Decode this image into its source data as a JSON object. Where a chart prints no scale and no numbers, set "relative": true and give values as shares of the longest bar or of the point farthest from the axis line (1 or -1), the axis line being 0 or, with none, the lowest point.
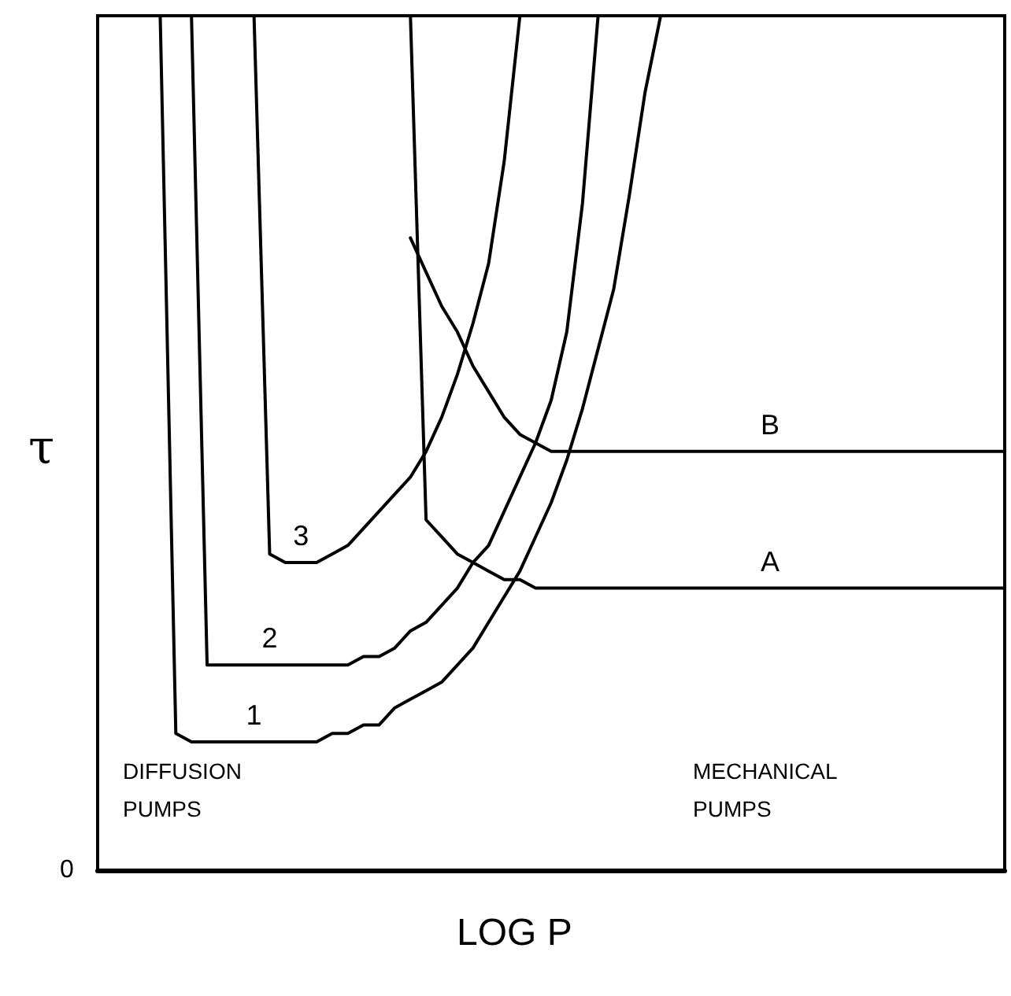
{
  "chart_data": {
    "type": "line",
    "relative": true,
    "xlabel": "LOG P",
    "ylabel": "τ",
    "grid": false,
    "legend": false,
    "marker": "none",
    "line_style": "solid",
    "categories": [
      null,
      null,
      null,
      null,
      null,
      null,
      null,
      null,
      null,
      null,
      null,
      null,
      null,
      null,
      null,
      null,
      null,
      null,
      null,
      null,
      null,
      null,
      null,
      null,
      null,
      null,
      null,
      null,
      null,
      null,
      null,
      null,
      null,
      null,
      null,
      null,
      null,
      null,
      null,
      null,
      null,
      null,
      null,
      null,
      null,
      null,
      null,
      null,
      null,
      null,
      null,
      null,
      null,
      null,
      null,
      null,
      null,
      null,
      null
    ],
    "annotations": [
      "0",
      "DIFFUSION PUMPS",
      "MECHANICAL PUMPS"
    ],
    "series": [
      {
        "name": "1",
        "color": "#000000",
        "values": [
          null,
          null,
          null,
          null,
          1.0,
          0.16,
          0.15,
          0.15,
          0.15,
          0.15,
          0.15,
          0.15,
          0.15,
          0.15,
          0.15,
          0.16,
          0.16,
          0.17,
          0.17,
          0.19,
          0.2,
          0.21,
          0.22,
          0.24,
          0.26,
          0.29,
          0.32,
          0.35,
          0.39,
          0.43,
          0.48,
          0.54,
          0.61,
          0.68,
          0.79,
          0.91,
          1.0,
          null,
          null,
          null,
          null,
          null,
          null,
          null,
          null,
          null,
          null,
          null,
          null,
          null,
          null,
          null,
          null,
          null,
          null,
          null,
          null,
          null,
          null
        ]
      },
      {
        "name": "2",
        "color": "#000000",
        "values": [
          null,
          null,
          null,
          null,
          null,
          null,
          1.0,
          0.24,
          0.24,
          0.24,
          0.24,
          0.24,
          0.24,
          0.24,
          0.24,
          0.24,
          0.24,
          0.25,
          0.25,
          0.26,
          0.28,
          0.29,
          0.31,
          0.33,
          0.36,
          0.38,
          0.42,
          0.46,
          0.5,
          0.55,
          0.63,
          0.78,
          1.0,
          null,
          null,
          null,
          null,
          null,
          null,
          null,
          null,
          null,
          null,
          null,
          null,
          null,
          null,
          null,
          null,
          null,
          null,
          null,
          null,
          null,
          null,
          null,
          null,
          null,
          null
        ]
      },
      {
        "name": "3",
        "color": "#000000",
        "values": [
          null,
          null,
          null,
          null,
          null,
          null,
          null,
          null,
          null,
          null,
          1.0,
          0.37,
          0.36,
          0.36,
          0.36,
          0.37,
          0.38,
          0.4,
          0.42,
          0.44,
          0.46,
          0.49,
          0.53,
          0.58,
          0.64,
          0.71,
          0.83,
          1.0,
          null,
          null,
          null,
          null,
          null,
          null,
          null,
          null,
          null,
          null,
          null,
          null,
          null,
          null,
          null,
          null,
          null,
          null,
          null,
          null,
          null,
          null,
          null,
          null,
          null,
          null,
          null,
          null,
          null,
          null,
          null
        ]
      },
      {
        "name": "A",
        "color": "#000000",
        "values": [
          null,
          null,
          null,
          null,
          null,
          null,
          null,
          null,
          null,
          null,
          null,
          null,
          null,
          null,
          null,
          null,
          null,
          null,
          null,
          null,
          1.0,
          0.41,
          0.39,
          0.37,
          0.36,
          0.35,
          0.34,
          0.34,
          0.33,
          0.33,
          0.33,
          0.33,
          0.33,
          0.33,
          0.33,
          0.33,
          0.33,
          0.33,
          0.33,
          0.33,
          0.33,
          0.33,
          0.33,
          0.33,
          0.33,
          0.33,
          0.33,
          0.33,
          0.33,
          0.33,
          0.33,
          0.33,
          0.33,
          0.33,
          0.33,
          0.33,
          0.33,
          0.33,
          0.33
        ]
      },
      {
        "name": "B",
        "color": "#000000",
        "values": [
          null,
          null,
          null,
          null,
          null,
          null,
          null,
          null,
          null,
          null,
          null,
          null,
          null,
          null,
          null,
          null,
          null,
          null,
          null,
          null,
          0.74,
          0.7,
          0.66,
          0.63,
          0.59,
          0.56,
          0.53,
          0.51,
          0.5,
          0.49,
          0.49,
          0.49,
          0.49,
          0.49,
          0.49,
          0.49,
          0.49,
          0.49,
          0.49,
          0.49,
          0.49,
          0.49,
          0.49,
          0.49,
          0.49,
          0.49,
          0.49,
          0.49,
          0.49,
          0.49,
          0.49,
          0.49,
          0.49,
          0.49,
          0.49,
          0.49,
          0.49,
          0.49,
          0.49
        ]
      }
    ]
  }
}
